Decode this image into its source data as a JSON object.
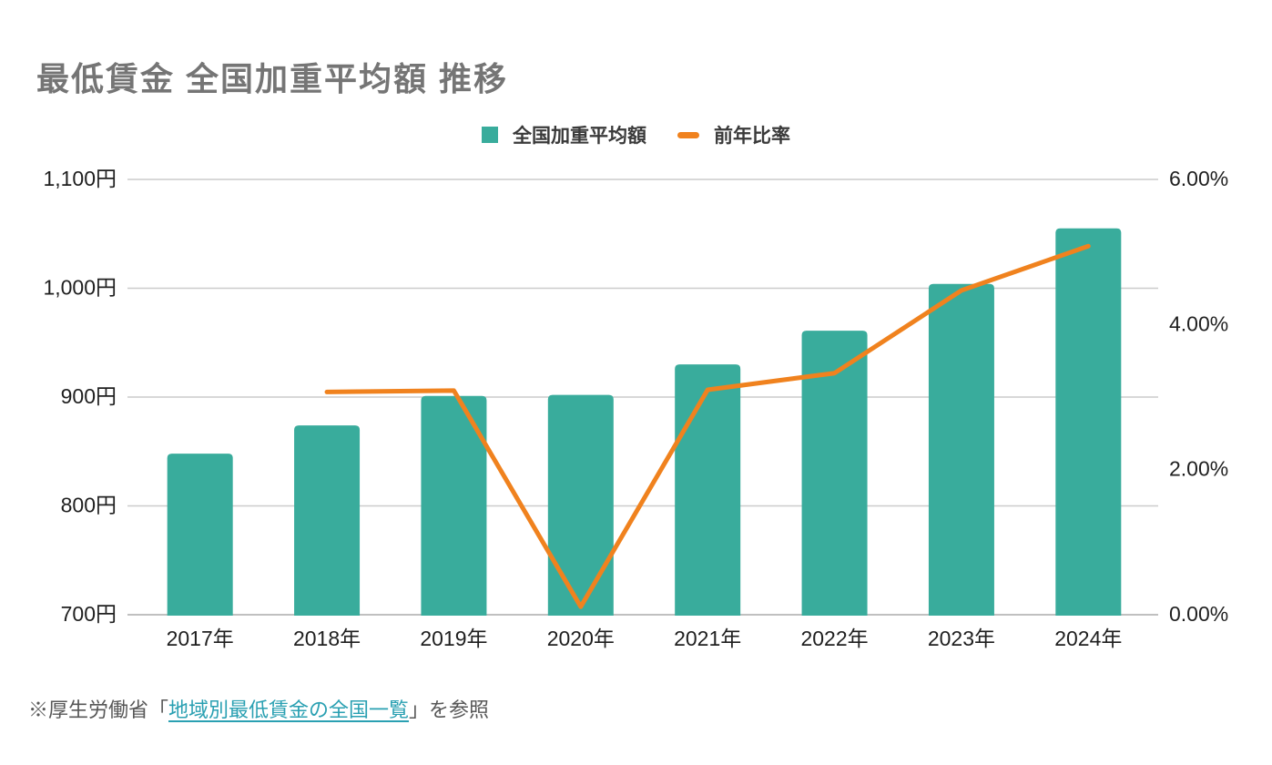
{
  "page": {
    "title": "最低賃金 全国加重平均額 推移"
  },
  "legend": {
    "items": [
      {
        "label": "全国加重平均額",
        "color": "#39AC9C",
        "shape": "square"
      },
      {
        "label": "前年比率",
        "color": "#F0821E",
        "shape": "dash"
      }
    ]
  },
  "footer": {
    "prefix": "※厚生労働省「",
    "link_text": "地域別最低賃金の全国一覧",
    "suffix": "」を参照",
    "link_color": "#2AA0B2"
  },
  "chart_data": {
    "type": "combo",
    "title": "最低賃金 全国加重平均額 推移",
    "categories": [
      "2017年",
      "2018年",
      "2019年",
      "2020年",
      "2021年",
      "2022年",
      "2023年",
      "2024年"
    ],
    "series": [
      {
        "name": "全国加重平均額",
        "type": "bar",
        "axis": "left",
        "color": "#39AC9C",
        "unit": "円",
        "values": [
          848,
          874,
          901,
          902,
          930,
          961,
          1004,
          1055
        ]
      },
      {
        "name": "前年比率",
        "type": "line",
        "axis": "right",
        "color": "#F0821E",
        "unit": "%",
        "values": [
          null,
          3.07,
          3.09,
          0.11,
          3.1,
          3.33,
          4.47,
          5.08
        ]
      }
    ],
    "left_axis": {
      "range": [
        700,
        1100
      ],
      "ticks": [
        {
          "value": 1100,
          "label": "1,100円"
        },
        {
          "value": 1000,
          "label": "1,000円"
        },
        {
          "value": 900,
          "label": "900円"
        },
        {
          "value": 800,
          "label": "800円"
        },
        {
          "value": 700,
          "label": "700円"
        }
      ]
    },
    "right_axis": {
      "range": [
        0,
        6
      ],
      "ticks": [
        {
          "value": 6,
          "label": "6.00%"
        },
        {
          "value": 4,
          "label": "4.00%"
        },
        {
          "value": 2,
          "label": "2.00%"
        },
        {
          "value": 0,
          "label": "0.00%"
        }
      ]
    },
    "grid": true,
    "legend_position": "top",
    "colors": {
      "gridline": "#CCCCCC",
      "baseline": "#C0C0C0",
      "axis_text": "#1F1F1F",
      "title_text": "#757575"
    }
  }
}
